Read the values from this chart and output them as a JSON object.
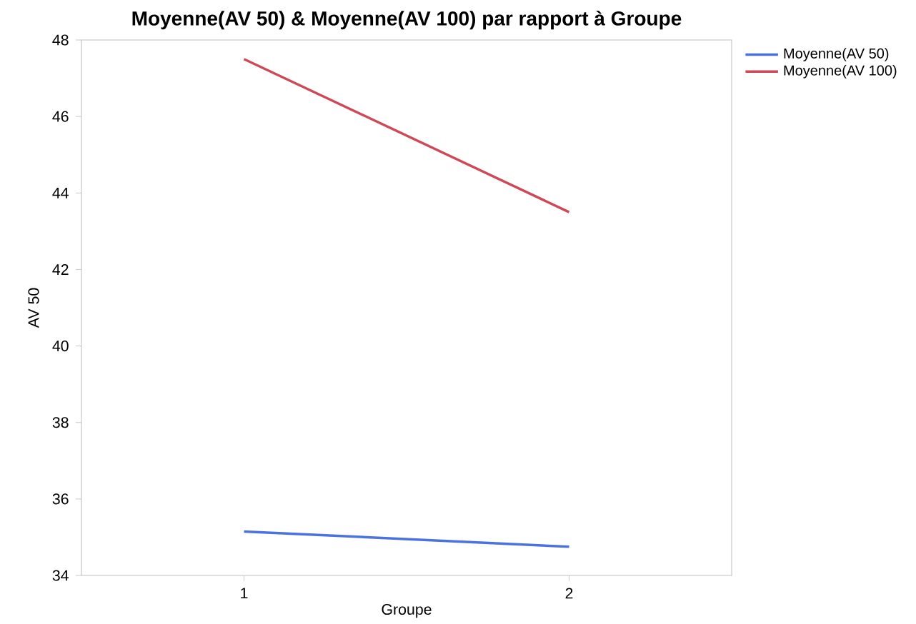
{
  "chart_data": {
    "type": "line",
    "title": "Moyenne(AV 50) & Moyenne(AV 100) par rapport à Groupe",
    "xlabel": "Groupe",
    "ylabel": "AV 50",
    "categories": [
      "1",
      "2"
    ],
    "series": [
      {
        "name": "Moyenne(AV 50)",
        "color": "#4a72e0",
        "values": [
          35.15,
          34.75
        ]
      },
      {
        "name": "Moyenne(AV 100)",
        "color": "#cf4858",
        "values": [
          47.5,
          43.5
        ]
      }
    ],
    "ylim": [
      34,
      48
    ],
    "yticks": [
      34,
      36,
      38,
      40,
      42,
      44,
      46,
      48
    ],
    "grid": false,
    "legend": "top right",
    "marker": "none",
    "line_style": "solid"
  }
}
